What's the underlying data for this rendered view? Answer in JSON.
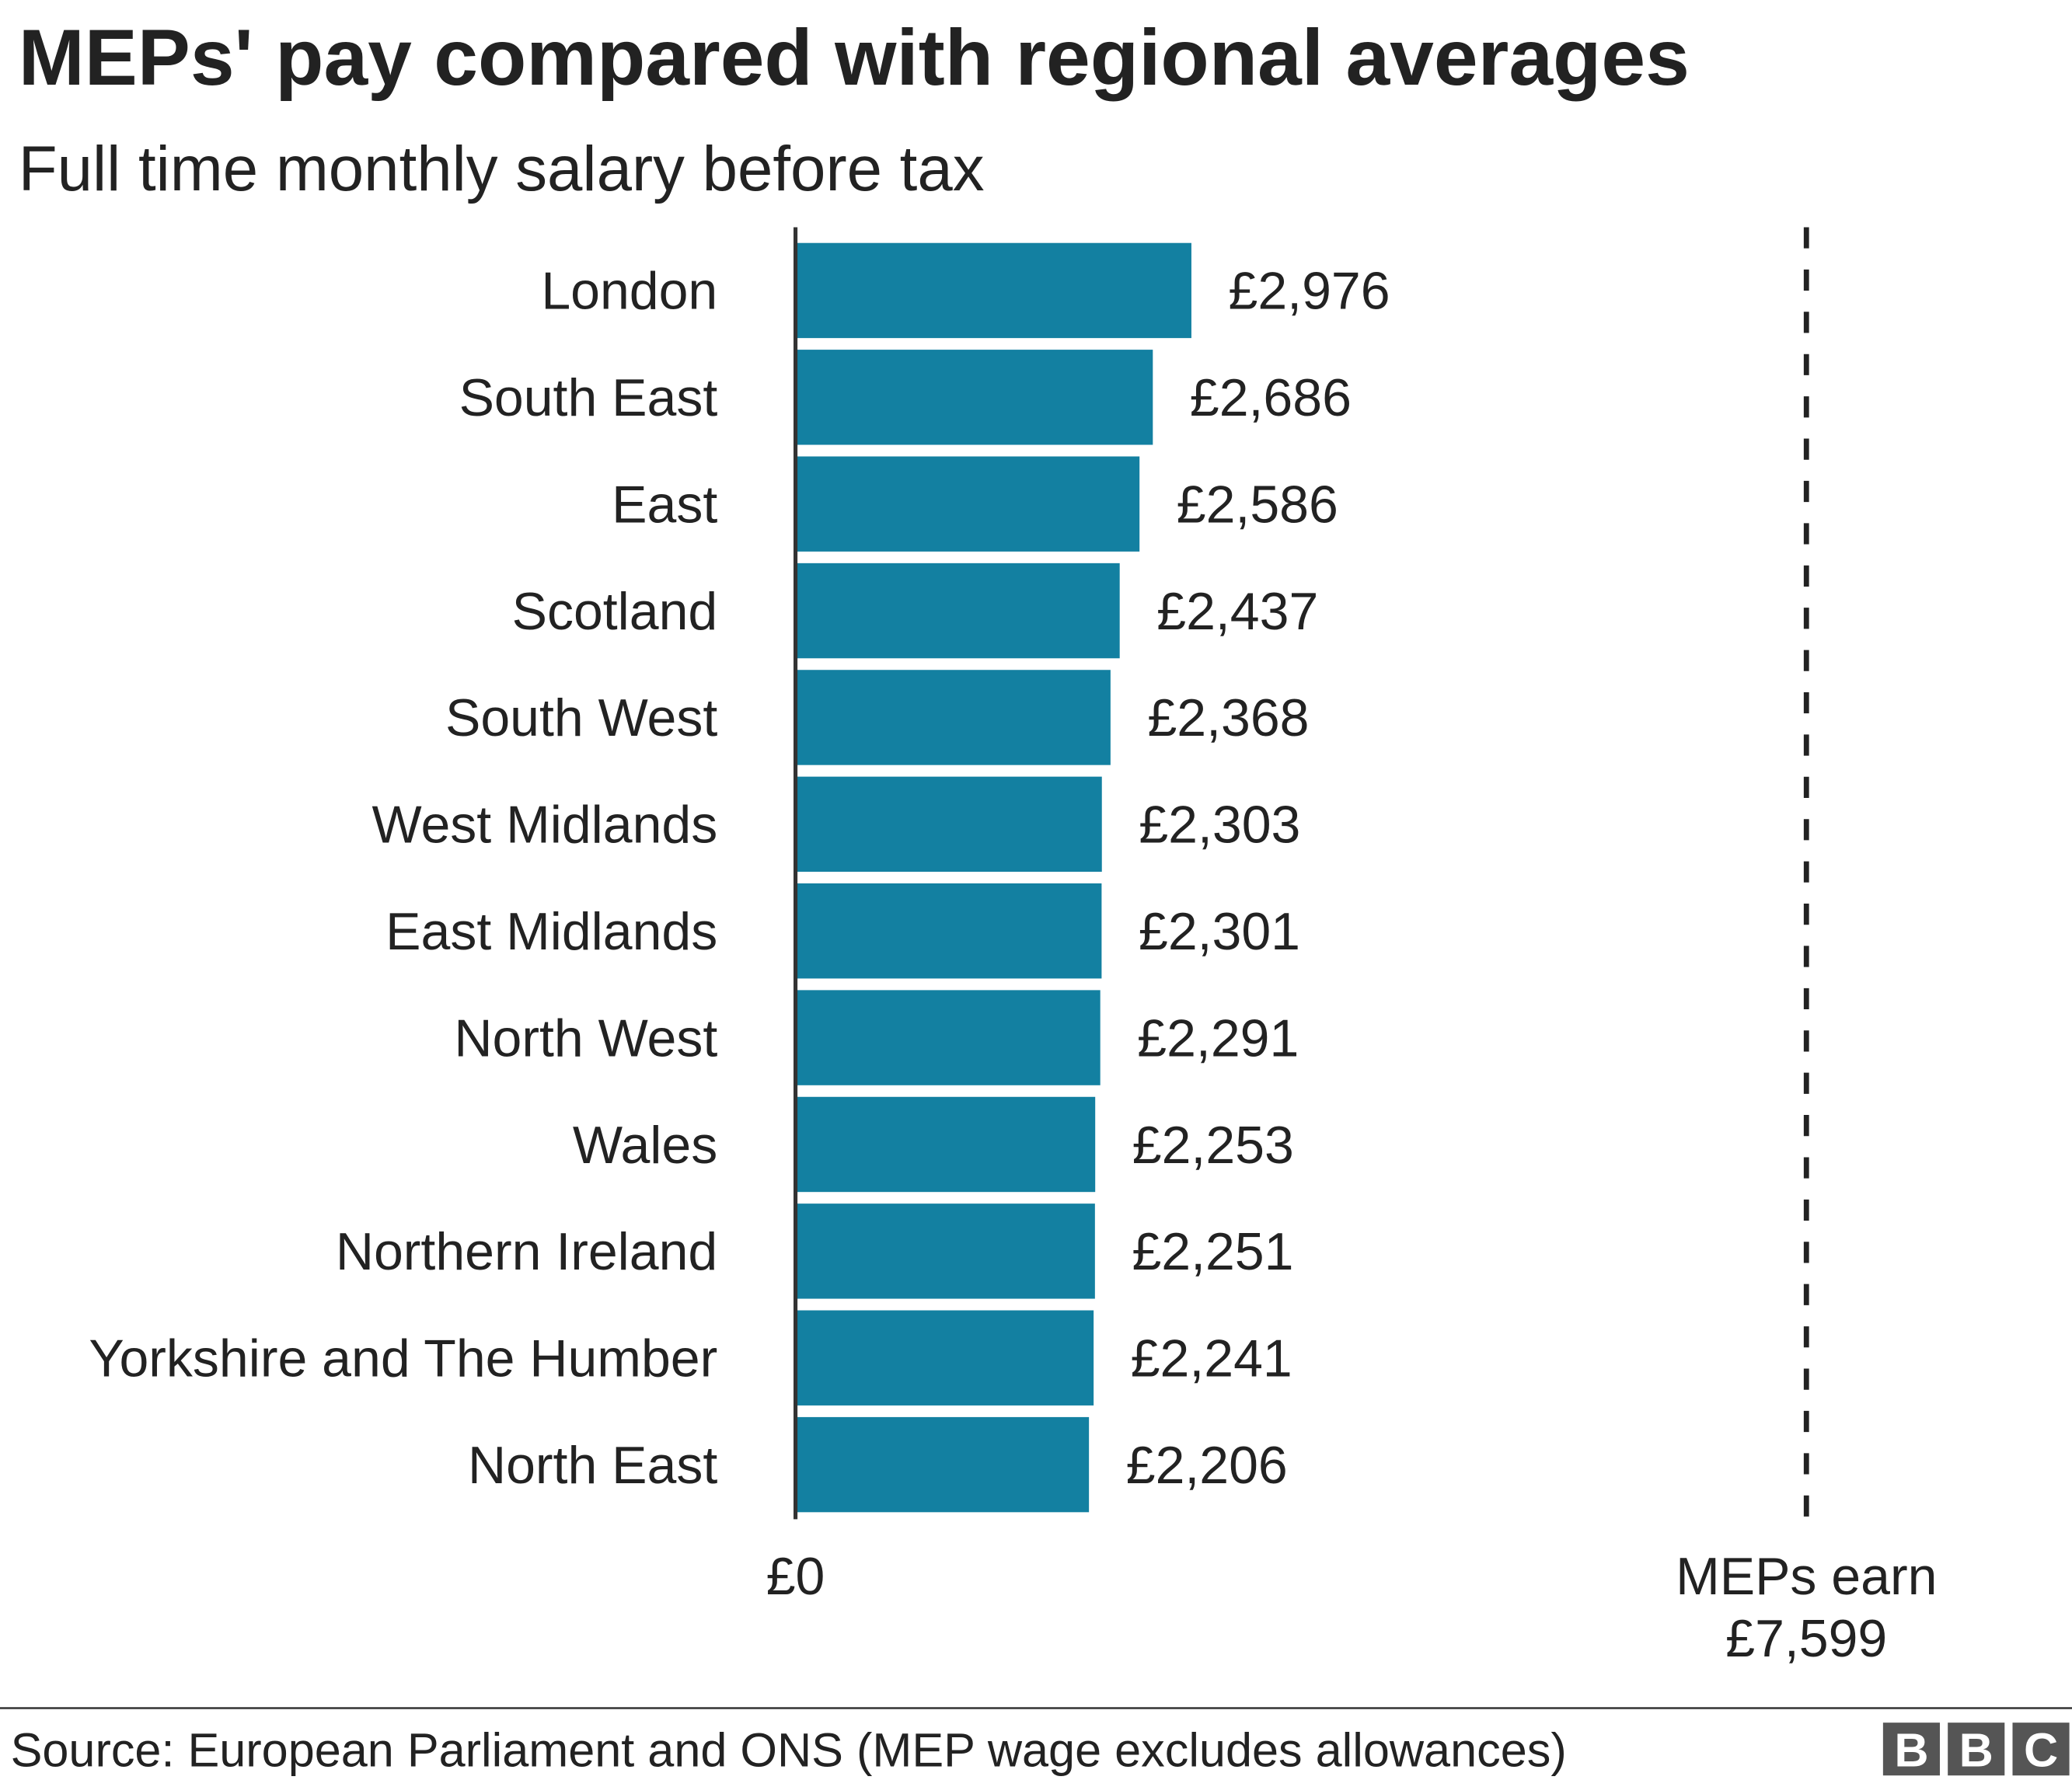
{
  "chart_data": {
    "type": "hbar",
    "title": "MEPs' pay compared with regional averages",
    "subtitle": "Full time monthly salary before tax",
    "categories": [
      "London",
      "South East",
      "East",
      "Scotland",
      "South West",
      "West Midlands",
      "East Midlands",
      "North West",
      "Wales",
      "Northern Ireland",
      "Yorkshire and The Humber",
      "North East"
    ],
    "values": [
      2976,
      2686,
      2586,
      2437,
      2368,
      2303,
      2301,
      2291,
      2253,
      2251,
      2241,
      2206
    ],
    "value_labels": [
      "£2,976",
      "£2,686",
      "£2,586",
      "£2,437",
      "£2,368",
      "£2,303",
      "£2,301",
      "£2,291",
      "£2,253",
      "£2,251",
      "£2,241",
      "£2,206"
    ],
    "color": "#1380a1",
    "xlim": [
      0,
      7599
    ],
    "xticks": [
      {
        "value": 0,
        "label": "£0"
      }
    ],
    "reference_line": {
      "value": 7599,
      "label_lines": [
        "MEPs earn",
        "£7,599"
      ]
    },
    "source": "Source: European Parliament and ONS (MEP wage excludes allowances)",
    "logo": [
      "B",
      "B",
      "C"
    ]
  }
}
